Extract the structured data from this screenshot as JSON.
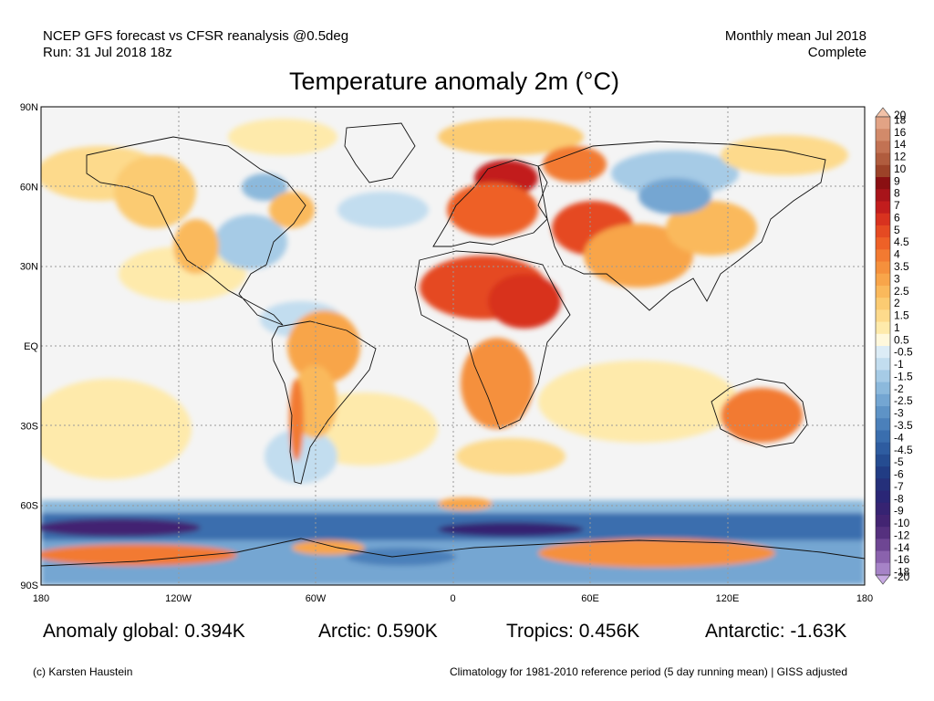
{
  "header": {
    "left_line1": "NCEP GFS forecast vs CFSR reanalysis @0.5deg",
    "left_line2": "Run: 31 Jul 2018 18z",
    "right_line1": "Monthly mean Jul 2018",
    "right_line2": "Complete"
  },
  "title": "Temperature anomaly 2m (°C)",
  "axes": {
    "lat_labels": [
      "90N",
      "60N",
      "30N",
      "EQ",
      "30S",
      "60S",
      "90S"
    ],
    "lat_values": [
      90,
      60,
      30,
      0,
      -30,
      -60,
      -90
    ],
    "lon_labels": [
      "180",
      "120W",
      "60W",
      "0",
      "60E",
      "120E",
      "180"
    ],
    "lon_values": [
      -180,
      -120,
      -60,
      0,
      60,
      120,
      180
    ],
    "gridlines": true
  },
  "colorbar": {
    "labels": [
      "20",
      "18",
      "16",
      "14",
      "12",
      "10",
      "9",
      "8",
      "7",
      "6",
      "5",
      "4.5",
      "4",
      "3.5",
      "3",
      "2.5",
      "2",
      "1.5",
      "1",
      "0.5",
      "-0.5",
      "-1",
      "-1.5",
      "-2",
      "-2.5",
      "-3",
      "-3.5",
      "-4",
      "-4.5",
      "-5",
      "-6",
      "-7",
      "-8",
      "-9",
      "-10",
      "-12",
      "-14",
      "-16",
      "-18",
      "-20"
    ],
    "colors": [
      "#f2c2a8",
      "#e2a385",
      "#d28a6a",
      "#c27253",
      "#b05c3e",
      "#9c4228",
      "#8a0f12",
      "#a8141a",
      "#c21d1d",
      "#d8321f",
      "#e54a22",
      "#ee6127",
      "#f27a31",
      "#f5903c",
      "#f8a54a",
      "#fab95c",
      "#fbcb72",
      "#fdda8c",
      "#feeaab",
      "#fff8dc",
      "#dcecf6",
      "#c2ddef",
      "#a6cbe6",
      "#8cb9dc",
      "#74a6d2",
      "#5e93c6",
      "#4b80ba",
      "#3a6eae",
      "#2e5ca0",
      "#254c91",
      "#213c84",
      "#25307a",
      "#2a2676",
      "#362372",
      "#432472",
      "#55307e",
      "#6e4693",
      "#8a62ad",
      "#a683c7",
      "#c7a9e2"
    ]
  },
  "stats": {
    "global": "Anomaly global: 0.394K",
    "arctic": "Arctic: 0.590K",
    "tropics": "Tropics: 0.456K",
    "antarctic": "Antarctic: -1.63K"
  },
  "footer": {
    "credit": "(c) Karsten Haustein",
    "note": "Climatology for 1981-2010 reference period (5 day running mean) | GISS adjusted"
  }
}
